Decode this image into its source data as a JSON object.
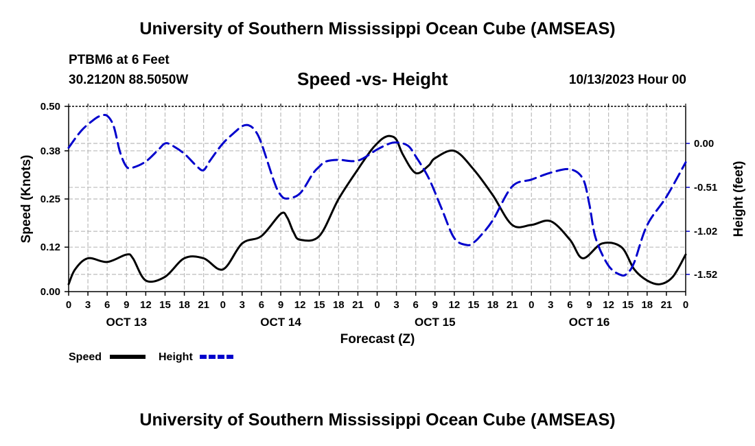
{
  "header": {
    "title": "University of Southern Mississippi Ocean Cube (AMSEAS)",
    "station": "PTBM6 at 6 Feet",
    "coordinates": "30.2120N  88.5050W",
    "datetime": "10/13/2023 Hour 00",
    "footer_title": "University of Southern Mississippi Ocean Cube (AMSEAS)"
  },
  "chart_data": {
    "type": "line",
    "title": "Speed -vs- Height",
    "xlabel": "Forecast (Z)",
    "ylabel_left": "Speed (Knots)",
    "ylabel_right": "Height (feet)",
    "x_range_hours": [
      0,
      96
    ],
    "x_ticks": [
      "0",
      "3",
      "6",
      "9",
      "12",
      "15",
      "18",
      "21",
      "0",
      "3",
      "6",
      "9",
      "12",
      "15",
      "18",
      "21",
      "0",
      "3",
      "6",
      "9",
      "12",
      "15",
      "18",
      "21",
      "0",
      "3",
      "6",
      "9",
      "12",
      "15",
      "18",
      "21",
      "0"
    ],
    "day_labels": [
      {
        "hour": 9,
        "label": "OCT 13"
      },
      {
        "hour": 33,
        "label": "OCT 14"
      },
      {
        "hour": 57,
        "label": "OCT 15"
      },
      {
        "hour": 81,
        "label": "OCT 16"
      }
    ],
    "left_axis": {
      "range": [
        0,
        0.5
      ],
      "ticks": [
        "0.00",
        "0.12",
        "0.25",
        "0.38",
        "0.50"
      ]
    },
    "right_axis": {
      "range": [
        -1.72,
        0.43
      ],
      "ticks": [
        "0.00",
        "-0.51",
        "-1.02",
        "-1.52"
      ],
      "tick_values": [
        0.0,
        -0.51,
        -1.02,
        -1.52
      ]
    },
    "legend": [
      {
        "name": "Speed",
        "color": "#000000",
        "dash": "solid"
      },
      {
        "name": "Height",
        "color": "#0000cc",
        "dash": "dashed"
      }
    ],
    "series": [
      {
        "name": "Speed",
        "axis": "left",
        "color": "#000000",
        "x": [
          0,
          1,
          3,
          6,
          9,
          10,
          12,
          15,
          18,
          21,
          24,
          27,
          30,
          33,
          34,
          35,
          36,
          39,
          42,
          45,
          47,
          48,
          49,
          50,
          51,
          52,
          54,
          56,
          57,
          60,
          63,
          66,
          69,
          72,
          75,
          78,
          80,
          83,
          86,
          88,
          90,
          92,
          94,
          96
        ],
        "y": [
          0.02,
          0.06,
          0.09,
          0.08,
          0.1,
          0.09,
          0.03,
          0.04,
          0.09,
          0.09,
          0.06,
          0.13,
          0.15,
          0.21,
          0.2,
          0.16,
          0.14,
          0.15,
          0.25,
          0.33,
          0.38,
          0.4,
          0.415,
          0.42,
          0.41,
          0.37,
          0.32,
          0.34,
          0.36,
          0.38,
          0.33,
          0.26,
          0.18,
          0.18,
          0.19,
          0.14,
          0.09,
          0.13,
          0.12,
          0.06,
          0.03,
          0.02,
          0.04,
          0.1
        ]
      },
      {
        "name": "Height",
        "axis": "right",
        "color": "#0000cc",
        "x": [
          0,
          2,
          4,
          5,
          6,
          7,
          8,
          9,
          10,
          12,
          14,
          15,
          16,
          18,
          20,
          21,
          22,
          24,
          26,
          27,
          28,
          29,
          30,
          32,
          33,
          34,
          36,
          38,
          39,
          40,
          42,
          45,
          48,
          50,
          51,
          52,
          53,
          54,
          56,
          58,
          60,
          62,
          63,
          64,
          66,
          69,
          72,
          75,
          78,
          80,
          81,
          82,
          84,
          86,
          87,
          88,
          90,
          93,
          96
        ],
        "y": [
          -0.05,
          0.15,
          0.28,
          0.32,
          0.32,
          0.2,
          -0.1,
          -0.27,
          -0.28,
          -0.21,
          -0.07,
          0.0,
          -0.02,
          -0.12,
          -0.27,
          -0.31,
          -0.2,
          0.0,
          0.14,
          0.2,
          0.21,
          0.15,
          0.0,
          -0.45,
          -0.6,
          -0.64,
          -0.58,
          -0.35,
          -0.27,
          -0.21,
          -0.19,
          -0.2,
          -0.07,
          0.0,
          0.01,
          0.0,
          -0.04,
          -0.15,
          -0.4,
          -0.75,
          -1.1,
          -1.18,
          -1.15,
          -1.08,
          -0.89,
          -0.5,
          -0.42,
          -0.34,
          -0.3,
          -0.41,
          -0.7,
          -1.1,
          -1.42,
          -1.53,
          -1.5,
          -1.38,
          -0.95,
          -0.62,
          -0.22
        ]
      }
    ]
  }
}
